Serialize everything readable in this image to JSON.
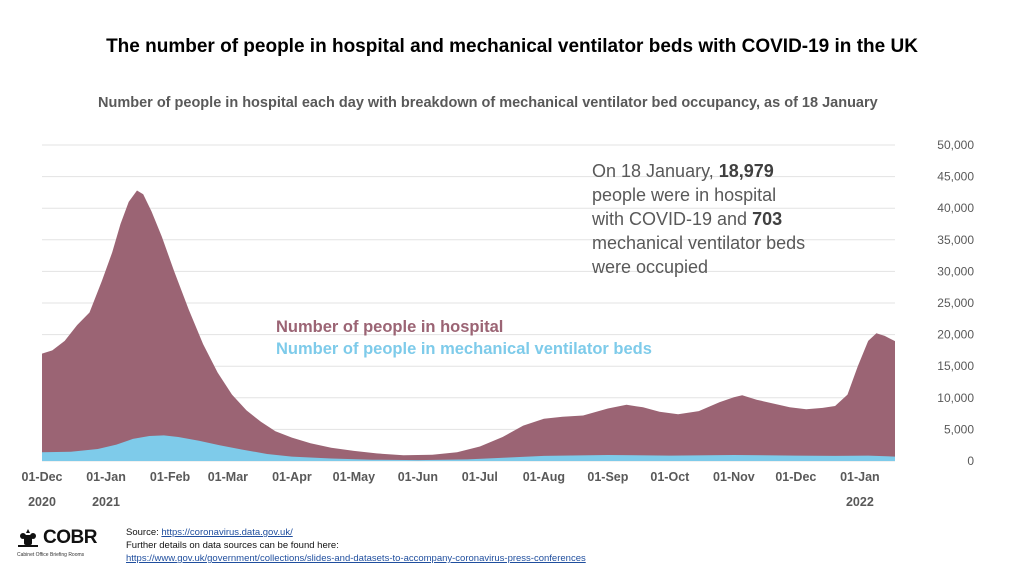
{
  "title": "The number of people in hospital and mechanical ventilator beds with COVID-19 in the UK",
  "subtitle": "Number of people in hospital each day with breakdown of mechanical ventilator bed occupancy, as of 18 January",
  "annotation": {
    "line1_pre": "On 18 January, ",
    "line1_bold": "18,979",
    "line2": "people were in hospital",
    "line3_pre": "with COVID-19 and ",
    "line3_bold": "703",
    "line4": "mechanical ventilator beds",
    "line5": "were occupied"
  },
  "legend": {
    "hospital": "Number of people in hospital",
    "ventilator": "Number of people in mechanical ventilator beds"
  },
  "colors": {
    "hospital": "#9b6474",
    "ventilator": "#7ecbea",
    "grid": "#e3e3e3",
    "axis_text": "#595959"
  },
  "footer": {
    "source_label": "Source: ",
    "source_link": "https://coronavirus.data.gov.uk/",
    "details": "Further details on data sources can be found here:",
    "details_link": "https://www.gov.uk/government/collections/slides-and-datasets-to-accompany-coronavirus-press-conferences"
  },
  "logo": {
    "name": "COBR",
    "subtitle": "Cabinet Office Briefing Rooms"
  },
  "chart_data": {
    "type": "area",
    "ylim": [
      0,
      50000
    ],
    "yticks": [
      0,
      5000,
      10000,
      15000,
      20000,
      25000,
      30000,
      35000,
      40000,
      45000,
      50000
    ],
    "ytick_labels": [
      "0",
      "5,000",
      "10,000",
      "15,000",
      "20,000",
      "25,000",
      "30,000",
      "35,000",
      "40,000",
      "45,000",
      "50,000"
    ],
    "grid": true,
    "x_start": "2020-12-01",
    "x_end": "2022-01-18",
    "xticks": [
      {
        "date": "2020-12-01",
        "label": "01-Dec",
        "sub": "2020"
      },
      {
        "date": "2021-01-01",
        "label": "01-Jan",
        "sub": "2021"
      },
      {
        "date": "2021-02-01",
        "label": "01-Feb",
        "sub": ""
      },
      {
        "date": "2021-03-01",
        "label": "01-Mar",
        "sub": ""
      },
      {
        "date": "2021-04-01",
        "label": "01-Apr",
        "sub": ""
      },
      {
        "date": "2021-05-01",
        "label": "01-May",
        "sub": ""
      },
      {
        "date": "2021-06-01",
        "label": "01-Jun",
        "sub": ""
      },
      {
        "date": "2021-07-01",
        "label": "01-Jul",
        "sub": ""
      },
      {
        "date": "2021-08-01",
        "label": "01-Aug",
        "sub": ""
      },
      {
        "date": "2021-09-01",
        "label": "01-Sep",
        "sub": ""
      },
      {
        "date": "2021-10-01",
        "label": "01-Oct",
        "sub": ""
      },
      {
        "date": "2021-11-01",
        "label": "01-Nov",
        "sub": ""
      },
      {
        "date": "2021-12-01",
        "label": "01-Dec",
        "sub": ""
      },
      {
        "date": "2022-01-01",
        "label": "01-Jan",
        "sub": "2022"
      }
    ],
    "series": [
      {
        "name": "Number of people in hospital",
        "points": [
          [
            "2020-12-01",
            17000
          ],
          [
            "2020-12-06",
            17500
          ],
          [
            "2020-12-12",
            19000
          ],
          [
            "2020-12-18",
            21500
          ],
          [
            "2020-12-24",
            23500
          ],
          [
            "2020-12-30",
            28500
          ],
          [
            "2021-01-04",
            33000
          ],
          [
            "2021-01-08",
            37500
          ],
          [
            "2021-01-12",
            41000
          ],
          [
            "2021-01-16",
            42800
          ],
          [
            "2021-01-19",
            42200
          ],
          [
            "2021-01-23",
            39500
          ],
          [
            "2021-01-28",
            35500
          ],
          [
            "2021-02-03",
            30000
          ],
          [
            "2021-02-10",
            24000
          ],
          [
            "2021-02-17",
            18500
          ],
          [
            "2021-02-24",
            14000
          ],
          [
            "2021-03-03",
            10500
          ],
          [
            "2021-03-10",
            8000
          ],
          [
            "2021-03-17",
            6200
          ],
          [
            "2021-03-24",
            4700
          ],
          [
            "2021-04-01",
            3700
          ],
          [
            "2021-04-10",
            2800
          ],
          [
            "2021-04-20",
            2100
          ],
          [
            "2021-05-01",
            1600
          ],
          [
            "2021-05-12",
            1200
          ],
          [
            "2021-05-25",
            900
          ],
          [
            "2021-06-08",
            1000
          ],
          [
            "2021-06-20",
            1400
          ],
          [
            "2021-07-01",
            2300
          ],
          [
            "2021-07-12",
            3800
          ],
          [
            "2021-07-22",
            5600
          ],
          [
            "2021-08-01",
            6700
          ],
          [
            "2021-08-10",
            7000
          ],
          [
            "2021-08-20",
            7200
          ],
          [
            "2021-09-01",
            8300
          ],
          [
            "2021-09-10",
            8900
          ],
          [
            "2021-09-18",
            8500
          ],
          [
            "2021-09-26",
            7800
          ],
          [
            "2021-10-05",
            7400
          ],
          [
            "2021-10-15",
            7900
          ],
          [
            "2021-10-25",
            9300
          ],
          [
            "2021-11-01",
            10100
          ],
          [
            "2021-11-05",
            10400
          ],
          [
            "2021-11-12",
            9700
          ],
          [
            "2021-11-20",
            9100
          ],
          [
            "2021-11-28",
            8500
          ],
          [
            "2021-12-06",
            8200
          ],
          [
            "2021-12-14",
            8400
          ],
          [
            "2021-12-20",
            8700
          ],
          [
            "2021-12-26",
            10500
          ],
          [
            "2021-12-31",
            15000
          ],
          [
            "2022-01-05",
            19000
          ],
          [
            "2022-01-09",
            20200
          ],
          [
            "2022-01-13",
            19800
          ],
          [
            "2022-01-18",
            18979
          ]
        ]
      },
      {
        "name": "Number of people in mechanical ventilator beds",
        "points": [
          [
            "2020-12-01",
            1400
          ],
          [
            "2020-12-15",
            1450
          ],
          [
            "2020-12-28",
            1900
          ],
          [
            "2021-01-06",
            2600
          ],
          [
            "2021-01-14",
            3500
          ],
          [
            "2021-01-22",
            3950
          ],
          [
            "2021-01-29",
            4050
          ],
          [
            "2021-02-05",
            3800
          ],
          [
            "2021-02-15",
            3200
          ],
          [
            "2021-02-25",
            2500
          ],
          [
            "2021-03-08",
            1800
          ],
          [
            "2021-03-20",
            1100
          ],
          [
            "2021-04-01",
            700
          ],
          [
            "2021-04-20",
            400
          ],
          [
            "2021-05-10",
            200
          ],
          [
            "2021-06-01",
            150
          ],
          [
            "2021-06-25",
            250
          ],
          [
            "2021-07-15",
            550
          ],
          [
            "2021-08-01",
            800
          ],
          [
            "2021-09-01",
            950
          ],
          [
            "2021-10-01",
            850
          ],
          [
            "2021-11-01",
            950
          ],
          [
            "2021-12-01",
            850
          ],
          [
            "2021-12-20",
            800
          ],
          [
            "2022-01-05",
            850
          ],
          [
            "2022-01-18",
            703
          ]
        ]
      }
    ]
  }
}
